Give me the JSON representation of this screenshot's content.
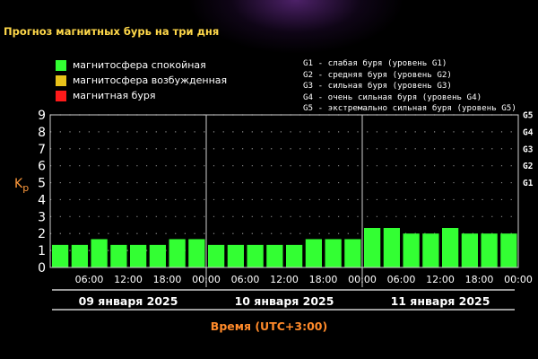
{
  "page": {
    "title": "Прогноз магнитных бурь на три дня"
  },
  "legend": {
    "items": [
      {
        "label": "магнитосфера спокойная",
        "color": "#33ff33"
      },
      {
        "label": "магнитосфера возбужденная",
        "color": "#e8c21a"
      },
      {
        "label": "магнитная буря",
        "color": "#ff1a1a"
      }
    ],
    "storm_levels": [
      "G1 - слабая буря (уровень G1)",
      "G2 - средняя буря (уровень G2)",
      "G3 - сильная буря (уровень G3)",
      "G4 - очень сильная буря (уровень G4)",
      "G5 - экстремально сильная буря (уровень G5)"
    ]
  },
  "chart_data": {
    "type": "bar",
    "ylabel_main": "K",
    "ylabel_sub": "p",
    "xlabel": "Время (UTC+3:00)",
    "ylim": [
      0,
      9
    ],
    "y_ticks": [
      "0",
      "1",
      "2",
      "3",
      "4",
      "5",
      "6",
      "7",
      "8",
      "9"
    ],
    "right_ticks": [
      {
        "value": 5,
        "label": "G1"
      },
      {
        "value": 6,
        "label": "G2"
      },
      {
        "value": 7,
        "label": "G3"
      },
      {
        "value": 8,
        "label": "G4"
      },
      {
        "value": 9,
        "label": "G5"
      }
    ],
    "days": [
      "09 января 2025",
      "10 января 2025",
      "11 января 2025"
    ],
    "time_labels": [
      "06:00",
      "12:00",
      "18:00",
      "00:00"
    ],
    "bar_color": "#33ff33",
    "values": [
      1.33,
      1.33,
      1.67,
      1.33,
      1.33,
      1.33,
      1.67,
      1.67,
      1.33,
      1.33,
      1.33,
      1.33,
      1.33,
      1.67,
      1.67,
      1.67,
      2.33,
      2.33,
      2.0,
      2.0,
      2.33,
      2.0,
      2.0,
      2.0
    ]
  }
}
